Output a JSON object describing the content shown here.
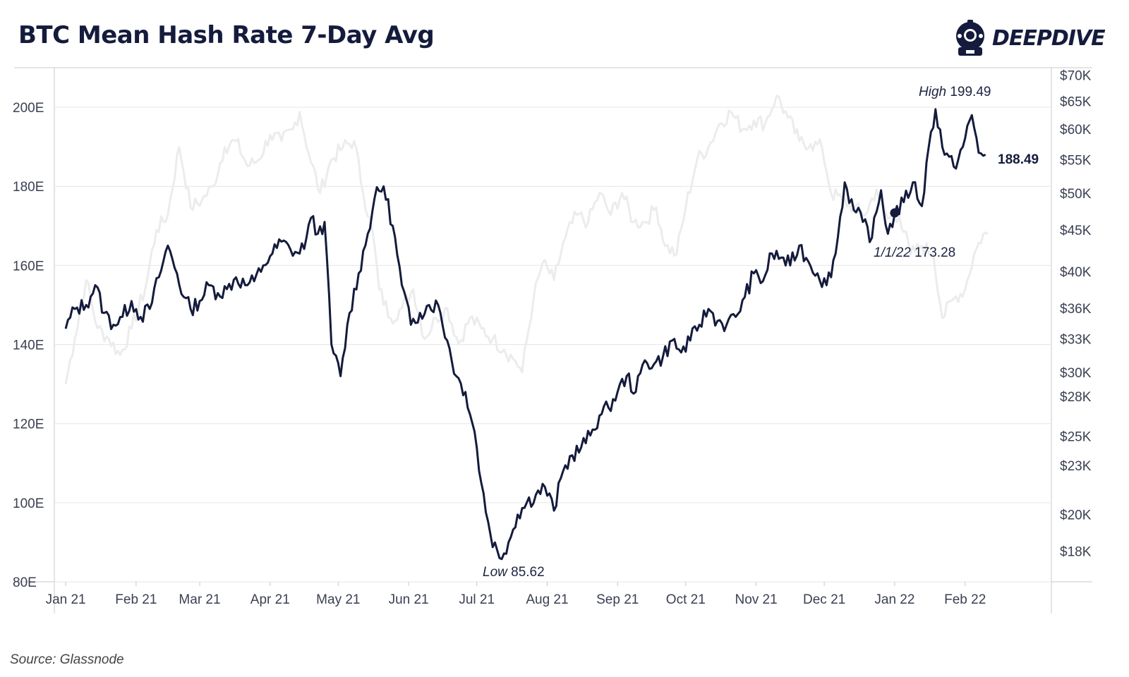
{
  "title": "BTC Mean Hash Rate 7-Day Avg",
  "logo_text": "DEEPDIVE",
  "source": "Source: Glassnode",
  "colors": {
    "primary": "#141b3c",
    "secondary": "#ececec",
    "grid": "#e6e6e6",
    "axis": "#c8c8c8"
  },
  "chart_data": {
    "type": "line",
    "title": "BTC Mean Hash Rate 7-Day Avg",
    "x_ticks": [
      "Jan 21",
      "Feb 21",
      "Mar 21",
      "Apr 21",
      "May 21",
      "Jun 21",
      "Jul 21",
      "Aug 21",
      "Sep 21",
      "Oct 21",
      "Nov 21",
      "Dec 21",
      "Jan 22",
      "Feb 22"
    ],
    "y_left": {
      "min": 80,
      "max": 210,
      "ticks": [
        80,
        100,
        120,
        140,
        160,
        180,
        200
      ],
      "tick_labels": [
        "80E",
        "100E",
        "120E",
        "140E",
        "160E",
        "180E",
        "200E"
      ]
    },
    "y_right": {
      "scale": "log",
      "min": 16500,
      "max": 71500,
      "ticks": [
        18000,
        20000,
        23000,
        25000,
        28000,
        30000,
        33000,
        36000,
        40000,
        45000,
        50000,
        55000,
        60000,
        65000,
        70000
      ],
      "tick_labels": [
        "$18K",
        "$20K",
        "$23K",
        "$25K",
        "$28K",
        "$30K",
        "$33K",
        "$36K",
        "$40K",
        "$45K",
        "$50K",
        "$55K",
        "$60K",
        "$65K",
        "$70K"
      ]
    },
    "grid": true,
    "series": [
      {
        "axis": "left",
        "color": "#141b3c",
        "x": [
          "2021-01-01",
          "2021-01-05",
          "2021-01-10",
          "2021-01-14",
          "2021-01-18",
          "2021-01-22",
          "2021-01-26",
          "2021-01-30",
          "2021-02-03",
          "2021-02-07",
          "2021-02-11",
          "2021-02-15",
          "2021-02-19",
          "2021-02-22",
          "2021-02-25",
          "2021-03-01",
          "2021-03-05",
          "2021-03-09",
          "2021-03-13",
          "2021-03-17",
          "2021-03-21",
          "2021-03-25",
          "2021-03-29",
          "2021-04-02",
          "2021-04-06",
          "2021-04-10",
          "2021-04-14",
          "2021-04-17",
          "2021-04-19",
          "2021-04-22",
          "2021-04-25",
          "2021-04-28",
          "2021-05-02",
          "2021-05-06",
          "2021-05-10",
          "2021-05-14",
          "2021-05-17",
          "2021-05-21",
          "2021-05-25",
          "2021-05-29",
          "2021-06-02",
          "2021-06-06",
          "2021-06-10",
          "2021-06-14",
          "2021-06-18",
          "2021-06-22",
          "2021-06-26",
          "2021-06-30",
          "2021-07-03",
          "2021-07-07",
          "2021-07-11",
          "2021-07-15",
          "2021-07-19",
          "2021-07-23",
          "2021-07-27",
          "2021-07-31",
          "2021-08-04",
          "2021-08-08",
          "2021-08-12",
          "2021-08-16",
          "2021-08-20",
          "2021-08-24",
          "2021-08-28",
          "2021-09-01",
          "2021-09-05",
          "2021-09-09",
          "2021-09-13",
          "2021-09-17",
          "2021-09-21",
          "2021-09-25",
          "2021-09-29",
          "2021-10-03",
          "2021-10-07",
          "2021-10-11",
          "2021-10-15",
          "2021-10-19",
          "2021-10-23",
          "2021-10-27",
          "2021-10-31",
          "2021-11-04",
          "2021-11-08",
          "2021-11-12",
          "2021-11-16",
          "2021-11-20",
          "2021-11-24",
          "2021-11-28",
          "2021-12-02",
          "2021-12-06",
          "2021-12-10",
          "2021-12-14",
          "2021-12-18",
          "2021-12-22",
          "2021-12-26",
          "2021-12-29",
          "2022-01-01",
          "2022-01-05",
          "2022-01-09",
          "2022-01-13",
          "2022-01-16",
          "2022-01-19",
          "2022-01-23",
          "2022-01-27",
          "2022-01-31",
          "2022-02-04",
          "2022-02-07",
          "2022-02-10"
        ],
        "y": [
          144,
          149,
          150,
          155,
          148,
          145,
          147,
          151,
          147,
          149,
          157,
          165,
          158,
          152,
          149,
          151,
          155,
          153,
          154,
          157,
          155,
          156,
          160,
          163,
          166,
          164,
          163,
          167,
          172,
          168,
          171,
          140,
          132,
          148,
          158,
          168,
          177,
          180,
          170,
          155,
          145,
          148,
          150,
          150,
          141,
          132,
          128,
          118,
          105,
          92,
          86,
          90,
          97,
          100,
          102,
          104,
          98,
          108,
          112,
          114,
          117,
          122,
          124,
          128,
          132,
          128,
          136,
          135,
          137,
          141,
          138,
          141,
          145,
          149,
          146,
          145,
          147,
          152,
          158,
          156,
          163,
          162,
          160,
          165,
          161,
          158,
          155,
          163,
          181,
          174,
          171,
          167,
          179,
          168,
          173,
          176,
          181,
          175,
          190,
          199.49,
          188,
          185,
          190,
          198,
          188.49,
          188
        ]
      }
    ],
    "annotations": [
      {
        "label": "High",
        "value": "199.49"
      },
      {
        "label": "Low",
        "value": "85.62"
      },
      {
        "label": "1/1/22",
        "value": "173.28"
      }
    ],
    "last_value_label": "188.49",
    "price_series": {
      "axis": "right",
      "color": "#ececec",
      "x": [
        "2021-01-01",
        "2021-01-05",
        "2021-01-10",
        "2021-01-15",
        "2021-01-20",
        "2021-01-25",
        "2021-01-30",
        "2021-02-05",
        "2021-02-10",
        "2021-02-15",
        "2021-02-20",
        "2021-02-25",
        "2021-03-02",
        "2021-03-07",
        "2021-03-12",
        "2021-03-17",
        "2021-03-22",
        "2021-03-27",
        "2021-04-01",
        "2021-04-06",
        "2021-04-11",
        "2021-04-14",
        "2021-04-18",
        "2021-04-23",
        "2021-04-28",
        "2021-05-03",
        "2021-05-08",
        "2021-05-12",
        "2021-05-16",
        "2021-05-19",
        "2021-05-24",
        "2021-05-29",
        "2021-06-03",
        "2021-06-08",
        "2021-06-13",
        "2021-06-18",
        "2021-06-23",
        "2021-06-28",
        "2021-07-03",
        "2021-07-08",
        "2021-07-13",
        "2021-07-18",
        "2021-07-21",
        "2021-07-26",
        "2021-07-30",
        "2021-08-04",
        "2021-08-09",
        "2021-08-14",
        "2021-08-19",
        "2021-08-24",
        "2021-08-29",
        "2021-09-03",
        "2021-09-08",
        "2021-09-13",
        "2021-09-18",
        "2021-09-22",
        "2021-09-27",
        "2021-10-01",
        "2021-10-06",
        "2021-10-11",
        "2021-10-16",
        "2021-10-21",
        "2021-10-26",
        "2021-10-31",
        "2021-11-05",
        "2021-11-10",
        "2021-11-15",
        "2021-11-20",
        "2021-11-25",
        "2021-11-30",
        "2021-12-04",
        "2021-12-09",
        "2021-12-14",
        "2021-12-19",
        "2021-12-24",
        "2021-12-29",
        "2022-01-03",
        "2022-01-08",
        "2022-01-13",
        "2022-01-18",
        "2022-01-22",
        "2022-01-27",
        "2022-02-01",
        "2022-02-05",
        "2022-02-09",
        "2022-02-11"
      ],
      "y": [
        29000,
        33000,
        39000,
        34000,
        33000,
        31500,
        34000,
        38000,
        45000,
        47000,
        57000,
        48000,
        49000,
        51000,
        57000,
        58000,
        54000,
        55000,
        59000,
        58000,
        60000,
        63000,
        56000,
        50000,
        55000,
        57000,
        58000,
        50000,
        45000,
        38000,
        35000,
        36000,
        38000,
        33000,
        35000,
        36000,
        32500,
        35000,
        34000,
        33000,
        32000,
        31000,
        30000,
        37000,
        41000,
        39000,
        44000,
        47000,
        46000,
        50000,
        47000,
        50000,
        46000,
        46000,
        48000,
        43000,
        42000,
        48000,
        55000,
        57000,
        61000,
        63000,
        60000,
        61500,
        61000,
        66000,
        62000,
        58000,
        57500,
        57000,
        50000,
        49000,
        48000,
        47000,
        50500,
        46500,
        47000,
        42000,
        43000,
        42000,
        35000,
        37000,
        38000,
        42000,
        44500,
        44500
      ]
    }
  }
}
